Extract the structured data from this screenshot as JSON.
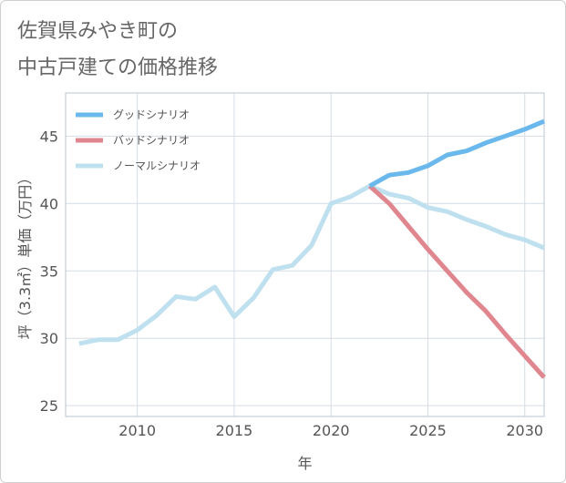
{
  "title_lines": [
    "佐賀県みやき町の",
    "中古戸建ての価格推移"
  ],
  "chart_data": {
    "type": "line",
    "title": "佐賀県みやき町の中古戸建ての価格推移",
    "xlabel": "年",
    "ylabel": "坪（3.3㎡）単価（万円）",
    "xlim": [
      2006.3,
      2031
    ],
    "ylim": [
      24.2,
      48.2
    ],
    "xticks": [
      2010,
      2015,
      2020,
      2025,
      2030
    ],
    "yticks": [
      25,
      30,
      35,
      40,
      45
    ],
    "grid": true,
    "legend_position": "top-left",
    "series": [
      {
        "name": "グッドシナリオ",
        "color": "#6ab8ec",
        "x": [
          2022,
          2023,
          2024,
          2025,
          2026,
          2027,
          2028,
          2029,
          2030,
          2031
        ],
        "y": [
          41.3,
          42.1,
          42.3,
          42.8,
          43.6,
          43.9,
          44.5,
          45.0,
          45.5,
          46.1
        ]
      },
      {
        "name": "バッドシナリオ",
        "color": "#e0868f",
        "x": [
          2022,
          2023,
          2024,
          2025,
          2026,
          2027,
          2028,
          2029,
          2030,
          2031
        ],
        "y": [
          41.3,
          40.0,
          38.3,
          36.6,
          35.0,
          33.4,
          32.0,
          30.3,
          28.7,
          27.1
        ]
      },
      {
        "name": "ノーマルシナリオ",
        "color": "#bfe0ef",
        "x": [
          2007,
          2008,
          2009,
          2010,
          2011,
          2012,
          2013,
          2014,
          2015,
          2016,
          2017,
          2018,
          2019,
          2020,
          2021,
          2022,
          2023,
          2024,
          2025,
          2026,
          2027,
          2028,
          2029,
          2030,
          2031
        ],
        "y": [
          29.6,
          29.9,
          29.9,
          30.6,
          31.7,
          33.1,
          32.9,
          33.8,
          31.6,
          33.0,
          35.1,
          35.4,
          36.9,
          40.0,
          40.5,
          41.3,
          40.7,
          40.4,
          39.7,
          39.4,
          38.8,
          38.3,
          37.7,
          37.3,
          36.7
        ]
      }
    ]
  }
}
